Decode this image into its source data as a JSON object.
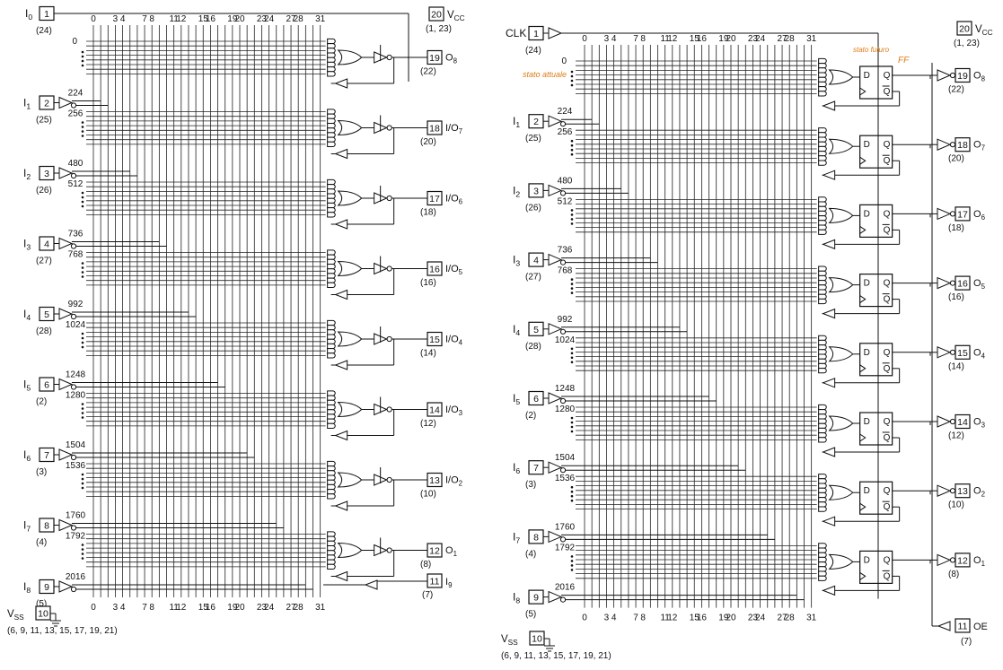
{
  "left_diagram": {
    "inputs": [
      {
        "name": "I",
        "sub": "1",
        "pin": "2",
        "alt": "(25)",
        "top_num": "224",
        "bot_num": "256"
      },
      {
        "name": "I",
        "sub": "2",
        "pin": "3",
        "alt": "(26)",
        "top_num": "480",
        "bot_num": "512"
      },
      {
        "name": "I",
        "sub": "3",
        "pin": "4",
        "alt": "(27)",
        "top_num": "736",
        "bot_num": "768"
      },
      {
        "name": "I",
        "sub": "4",
        "pin": "5",
        "alt": "(28)",
        "top_num": "992",
        "bot_num": "1024"
      },
      {
        "name": "I",
        "sub": "5",
        "pin": "6",
        "alt": "(2)",
        "top_num": "1248",
        "bot_num": "1280"
      },
      {
        "name": "I",
        "sub": "6",
        "pin": "7",
        "alt": "(3)",
        "top_num": "1504",
        "bot_num": "1536"
      },
      {
        "name": "I",
        "sub": "7",
        "pin": "8",
        "alt": "(4)",
        "top_num": "1760",
        "bot_num": "1792"
      },
      {
        "name": "I",
        "sub": "8",
        "pin": "9",
        "alt": "(5)",
        "top_num": "2016",
        "bot_num": ""
      }
    ],
    "top_input": {
      "name": "I",
      "sub": "0",
      "pin": "1",
      "alt": "(24)"
    },
    "vcc": {
      "pin": "20",
      "label": "V",
      "sub": "CC",
      "alt": "(1, 23)"
    },
    "vss": {
      "pin": "10",
      "label": "V",
      "sub": "SS",
      "alt": "(6, 9, 11, 13, 15, 17, 19, 21)"
    },
    "outputs": [
      {
        "pin": "19",
        "label": "O",
        "sub": "8",
        "alt": "(22)"
      },
      {
        "pin": "18",
        "label": "I/O",
        "sub": "7",
        "alt": "(20)"
      },
      {
        "pin": "17",
        "label": "I/O",
        "sub": "6",
        "alt": "(18)"
      },
      {
        "pin": "16",
        "label": "I/O",
        "sub": "5",
        "alt": "(16)"
      },
      {
        "pin": "15",
        "label": "I/O",
        "sub": "4",
        "alt": "(14)"
      },
      {
        "pin": "14",
        "label": "I/O",
        "sub": "3",
        "alt": "(12)"
      },
      {
        "pin": "13",
        "label": "I/O",
        "sub": "2",
        "alt": "(10)"
      },
      {
        "pin": "12",
        "label": "O",
        "sub": "1",
        "alt": "(8)"
      }
    ],
    "extra_input": {
      "pin": "11",
      "label": "I",
      "sub": "9",
      "alt": "(7)"
    },
    "row_zero": "0",
    "col_labels_top": [
      "0",
      "3",
      "4",
      "7",
      "8",
      "11",
      "12",
      "15",
      "16",
      "19",
      "20",
      "23",
      "24",
      "27",
      "28",
      "31"
    ],
    "col_labels_bottom": [
      "0",
      "3",
      "4",
      "7",
      "8",
      "11",
      "12",
      "15",
      "16",
      "19",
      "20",
      "23",
      "24",
      "27",
      "28",
      "31"
    ]
  },
  "right_diagram": {
    "top_input": {
      "name": "CLK",
      "pin": "1",
      "alt": "(24)"
    },
    "inputs": [
      {
        "name": "I",
        "sub": "1",
        "pin": "2",
        "alt": "(25)",
        "top_num": "224",
        "bot_num": "256"
      },
      {
        "name": "I",
        "sub": "2",
        "pin": "3",
        "alt": "(26)",
        "top_num": "480",
        "bot_num": "512"
      },
      {
        "name": "I",
        "sub": "3",
        "pin": "4",
        "alt": "(27)",
        "top_num": "736",
        "bot_num": "768"
      },
      {
        "name": "I",
        "sub": "4",
        "pin": "5",
        "alt": "(28)",
        "top_num": "992",
        "bot_num": "1024"
      },
      {
        "name": "I",
        "sub": "5",
        "pin": "6",
        "alt": "(2)",
        "top_num": "1248",
        "bot_num": "1280"
      },
      {
        "name": "I",
        "sub": "6",
        "pin": "7",
        "alt": "(3)",
        "top_num": "1504",
        "bot_num": "1536"
      },
      {
        "name": "I",
        "sub": "7",
        "pin": "8",
        "alt": "(4)",
        "top_num": "1760",
        "bot_num": "1792"
      },
      {
        "name": "I",
        "sub": "8",
        "pin": "9",
        "alt": "(5)",
        "top_num": "2016",
        "bot_num": ""
      }
    ],
    "vcc": {
      "pin": "20",
      "label": "V",
      "sub": "CC",
      "alt": "(1, 23)"
    },
    "vss": {
      "pin": "10",
      "label": "V",
      "sub": "SS",
      "alt": "(6, 9, 11, 13, 15, 17, 19, 21)"
    },
    "outputs": [
      {
        "pin": "19",
        "label": "O",
        "sub": "8",
        "alt": "(22)"
      },
      {
        "pin": "18",
        "label": "O",
        "sub": "7",
        "alt": "(20)"
      },
      {
        "pin": "17",
        "label": "O",
        "sub": "6",
        "alt": "(18)"
      },
      {
        "pin": "16",
        "label": "O",
        "sub": "5",
        "alt": "(16)"
      },
      {
        "pin": "15",
        "label": "O",
        "sub": "4",
        "alt": "(14)"
      },
      {
        "pin": "14",
        "label": "O",
        "sub": "3",
        "alt": "(12)"
      },
      {
        "pin": "13",
        "label": "O",
        "sub": "2",
        "alt": "(10)"
      },
      {
        "pin": "12",
        "label": "O",
        "sub": "1",
        "alt": "(8)"
      }
    ],
    "oe": {
      "pin": "11",
      "label": "OE",
      "alt": "(7)"
    },
    "ff": {
      "d": "D",
      "q": "Q",
      "qbar": "Q"
    },
    "row_zero": "0",
    "col_labels_top": [
      "0",
      "3",
      "4",
      "7",
      "8",
      "11",
      "12",
      "15",
      "16",
      "19",
      "20",
      "23",
      "24",
      "27",
      "28",
      "31"
    ],
    "col_labels_bottom": [
      "0",
      "3",
      "4",
      "7",
      "8",
      "11",
      "12",
      "15",
      "16",
      "19",
      "20",
      "23",
      "24",
      "27",
      "28",
      "31"
    ],
    "annotations": [
      "stato attuale",
      "stato futuro",
      "FF"
    ]
  },
  "colors": {
    "ink": "#111111",
    "annotation": "#e07b16",
    "background": "#ffffff"
  }
}
